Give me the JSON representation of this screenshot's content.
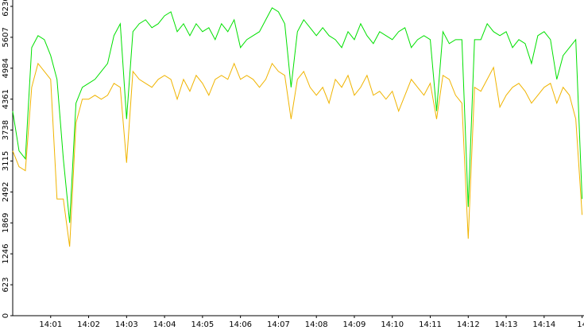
{
  "chart_data": {
    "type": "line",
    "x": [
      0,
      10,
      20,
      30,
      40,
      50,
      60,
      70,
      80,
      90,
      100,
      110,
      120,
      130,
      140,
      150,
      160,
      170,
      180,
      190,
      200,
      210,
      220,
      230,
      240,
      250,
      260,
      270,
      280,
      290,
      300,
      310,
      320,
      330,
      340,
      350,
      360,
      370,
      380,
      390,
      400,
      410,
      420,
      430,
      440,
      450,
      460,
      470,
      480,
      490,
      500,
      510,
      520,
      530,
      540,
      550,
      560,
      570,
      580,
      590,
      600,
      610,
      620,
      630,
      640,
      650,
      660,
      670,
      680,
      690,
      700,
      710,
      720,
      730,
      740,
      750,
      760,
      770,
      780,
      790,
      800,
      810,
      820,
      830,
      840,
      850,
      860,
      870,
      880,
      890,
      900
    ],
    "series": [
      {
        "color": "#00e000",
        "values": [
          4120,
          3320,
          3160,
          5400,
          5640,
          5560,
          5240,
          4760,
          3160,
          1870,
          4280,
          4600,
          4680,
          4760,
          4920,
          5080,
          5640,
          5880,
          3960,
          5720,
          5880,
          5960,
          5800,
          5880,
          6040,
          6120,
          5720,
          5880,
          5640,
          5880,
          5720,
          5800,
          5560,
          5880,
          5720,
          5960,
          5400,
          5560,
          5640,
          5720,
          5960,
          6200,
          6120,
          5880,
          4600,
          5720,
          5960,
          5800,
          5640,
          5800,
          5640,
          5560,
          5400,
          5720,
          5560,
          5880,
          5640,
          5480,
          5720,
          5640,
          5560,
          5720,
          5800,
          5400,
          5560,
          5640,
          5560,
          4120,
          5720,
          5480,
          5560,
          5560,
          2190,
          5560,
          5560,
          5880,
          5720,
          5640,
          5720,
          5400,
          5560,
          5480,
          5080,
          5640,
          5720,
          5560,
          4760,
          5240,
          5400,
          5560,
          2350
        ]
      },
      {
        "color": "#f0b400",
        "values": [
          3320,
          3000,
          2920,
          4600,
          5080,
          4920,
          4760,
          2350,
          2350,
          1390,
          3880,
          4360,
          4360,
          4440,
          4360,
          4440,
          4680,
          4600,
          3080,
          4920,
          4760,
          4680,
          4600,
          4760,
          4840,
          4760,
          4360,
          4760,
          4520,
          4840,
          4680,
          4440,
          4760,
          4840,
          4760,
          5080,
          4760,
          4840,
          4760,
          4600,
          4760,
          5080,
          4920,
          4840,
          3960,
          4760,
          4920,
          4600,
          4440,
          4600,
          4280,
          4760,
          4600,
          4840,
          4440,
          4600,
          4840,
          4440,
          4520,
          4360,
          4520,
          4120,
          4440,
          4760,
          4600,
          4440,
          4680,
          3960,
          4840,
          4760,
          4440,
          4280,
          1550,
          4600,
          4520,
          4760,
          5000,
          4200,
          4440,
          4600,
          4680,
          4520,
          4280,
          4440,
          4600,
          4680,
          4280,
          4600,
          4440,
          3960,
          2030
        ]
      }
    ],
    "xlim": [
      0,
      903
    ],
    "xticks": [
      {
        "value": 60,
        "label": "14:01"
      },
      {
        "value": 120,
        "label": "14:02"
      },
      {
        "value": 180,
        "label": "14:03"
      },
      {
        "value": 240,
        "label": "14:04"
      },
      {
        "value": 300,
        "label": "14:05"
      },
      {
        "value": 360,
        "label": "14:06"
      },
      {
        "value": 420,
        "label": "14:07"
      },
      {
        "value": 480,
        "label": "14:08"
      },
      {
        "value": 540,
        "label": "14:09"
      },
      {
        "value": 600,
        "label": "14:10"
      },
      {
        "value": 660,
        "label": "14:11"
      },
      {
        "value": 720,
        "label": "14:12"
      },
      {
        "value": 780,
        "label": "14:13"
      },
      {
        "value": 840,
        "label": "14:14"
      },
      {
        "value": 900,
        "label": "14"
      }
    ],
    "ylim": [
      0,
      6230
    ],
    "yticks": [
      0,
      623,
      1246,
      1869,
      2492,
      3115,
      3738,
      4361,
      4984,
      5607,
      6230
    ]
  }
}
